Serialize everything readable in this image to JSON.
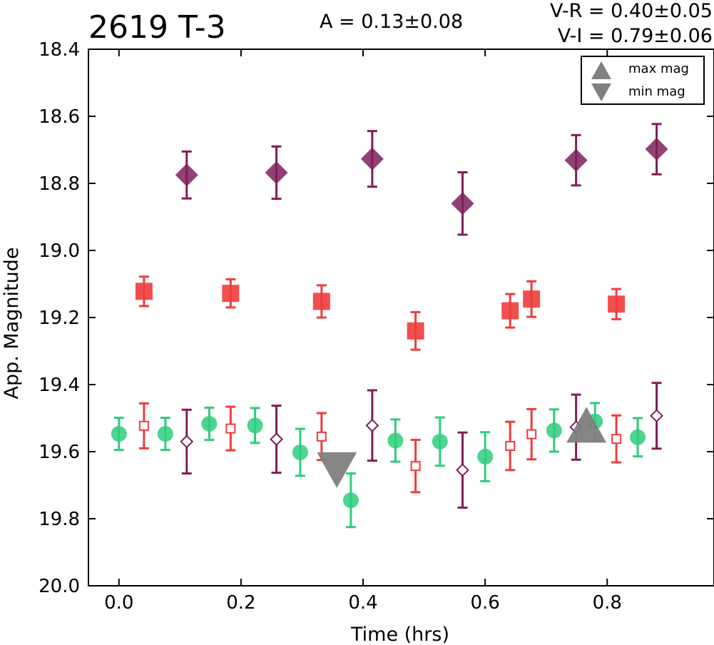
{
  "header": {
    "title": "2619 T-3",
    "amplitude": "A  = 0.13±0.08",
    "color_vr": "V-R = 0.40±0.05",
    "color_vi": "V-I  = 0.79±0.06"
  },
  "legend": {
    "placement": "top-right",
    "items": [
      {
        "label": "max mag",
        "marker": "triangle-up",
        "color": "#808080"
      },
      {
        "label": "min mag",
        "marker": "triangle-down",
        "color": "#808080"
      }
    ]
  },
  "chart_data": {
    "type": "scatter",
    "xlabel": "Time (hrs)",
    "ylabel": "App. Magnitude",
    "xlim": [
      -0.05,
      0.975
    ],
    "ylim": [
      20.0,
      18.4
    ],
    "y_inverted": true,
    "grid": false,
    "x_ticks": [
      "0.0",
      "0.2",
      "0.4",
      "0.6",
      "0.8"
    ],
    "y_ticks": [
      "18.4",
      "18.6",
      "18.8",
      "19.0",
      "19.2",
      "19.4",
      "19.6",
      "19.8",
      "20.0"
    ],
    "series": [
      {
        "marker": "diamond-filled",
        "color": "#7e1e5a",
        "x": [
          0.111,
          0.258,
          0.415,
          0.563,
          0.749,
          0.881
        ],
        "y": [
          18.775,
          18.768,
          18.727,
          18.86,
          18.731,
          18.698
        ],
        "err": [
          0.07,
          0.078,
          0.083,
          0.093,
          0.075,
          0.075
        ]
      },
      {
        "marker": "square-filled",
        "color": "#f03c3c",
        "x": [
          0.041,
          0.183,
          0.332,
          0.486,
          0.641,
          0.676,
          0.815
        ],
        "y": [
          19.122,
          19.128,
          19.152,
          19.24,
          19.18,
          19.145,
          19.16
        ],
        "err": [
          0.044,
          0.042,
          0.048,
          0.056,
          0.05,
          0.053,
          0.045
        ]
      },
      {
        "marker": "circle-filled",
        "color": "#2ecc7a",
        "x": [
          0.0,
          0.076,
          0.148,
          0.223,
          0.297,
          0.38,
          0.453,
          0.526,
          0.6,
          0.713,
          0.78,
          0.85
        ],
        "y": [
          19.547,
          19.547,
          19.517,
          19.522,
          19.602,
          19.745,
          19.567,
          19.57,
          19.615,
          19.537,
          19.51,
          19.557
        ],
        "err": [
          0.048,
          0.048,
          0.048,
          0.052,
          0.07,
          0.08,
          0.063,
          0.072,
          0.073,
          0.063,
          0.055,
          0.057
        ]
      },
      {
        "marker": "square-open",
        "color": "#f03c3c",
        "x": [
          0.041,
          0.183,
          0.332,
          0.486,
          0.641,
          0.676,
          0.815
        ],
        "y": [
          19.523,
          19.531,
          19.555,
          19.643,
          19.583,
          19.548,
          19.562
        ],
        "err": [
          0.067,
          0.065,
          0.07,
          0.078,
          0.072,
          0.075,
          0.07
        ]
      },
      {
        "marker": "diamond-open",
        "color": "#7e1e5a",
        "x": [
          0.111,
          0.258,
          0.415,
          0.563,
          0.749,
          0.881
        ],
        "y": [
          19.57,
          19.563,
          19.522,
          19.655,
          19.527,
          19.493
        ],
        "err": [
          0.095,
          0.1,
          0.105,
          0.112,
          0.097,
          0.098
        ]
      },
      {
        "name": "max mag",
        "marker": "triangle-up",
        "color": "#808080",
        "x": [
          0.766
        ],
        "y": [
          19.52
        ]
      },
      {
        "name": "min mag",
        "marker": "triangle-down",
        "color": "#808080",
        "x": [
          0.357
        ],
        "y": [
          19.655
        ]
      }
    ]
  }
}
